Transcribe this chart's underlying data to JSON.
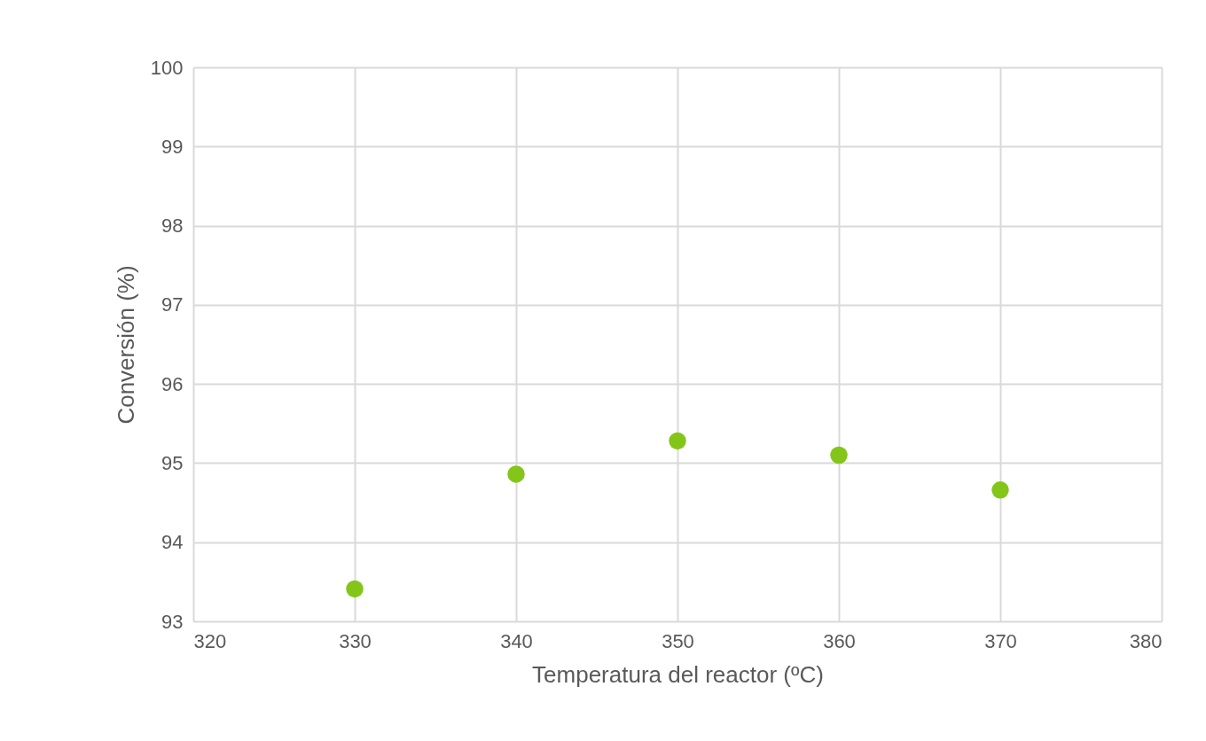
{
  "chart_data": {
    "type": "scatter",
    "xlabel": "Temperatura del reactor (ºC)",
    "ylabel": "Conversión (%)",
    "x": [
      330,
      340,
      350,
      360,
      370
    ],
    "series": [
      {
        "color": "#84c51a",
        "values": [
          93.41,
          94.86,
          95.28,
          95.1,
          94.66
        ]
      }
    ],
    "xlim": [
      320,
      380
    ],
    "xticks": [
      320,
      330,
      340,
      350,
      360,
      370,
      380
    ],
    "ylim": [
      93,
      100
    ],
    "yticks": [
      93,
      94,
      95,
      96,
      97,
      98,
      99,
      100
    ],
    "grid": true,
    "marker": "circle"
  }
}
